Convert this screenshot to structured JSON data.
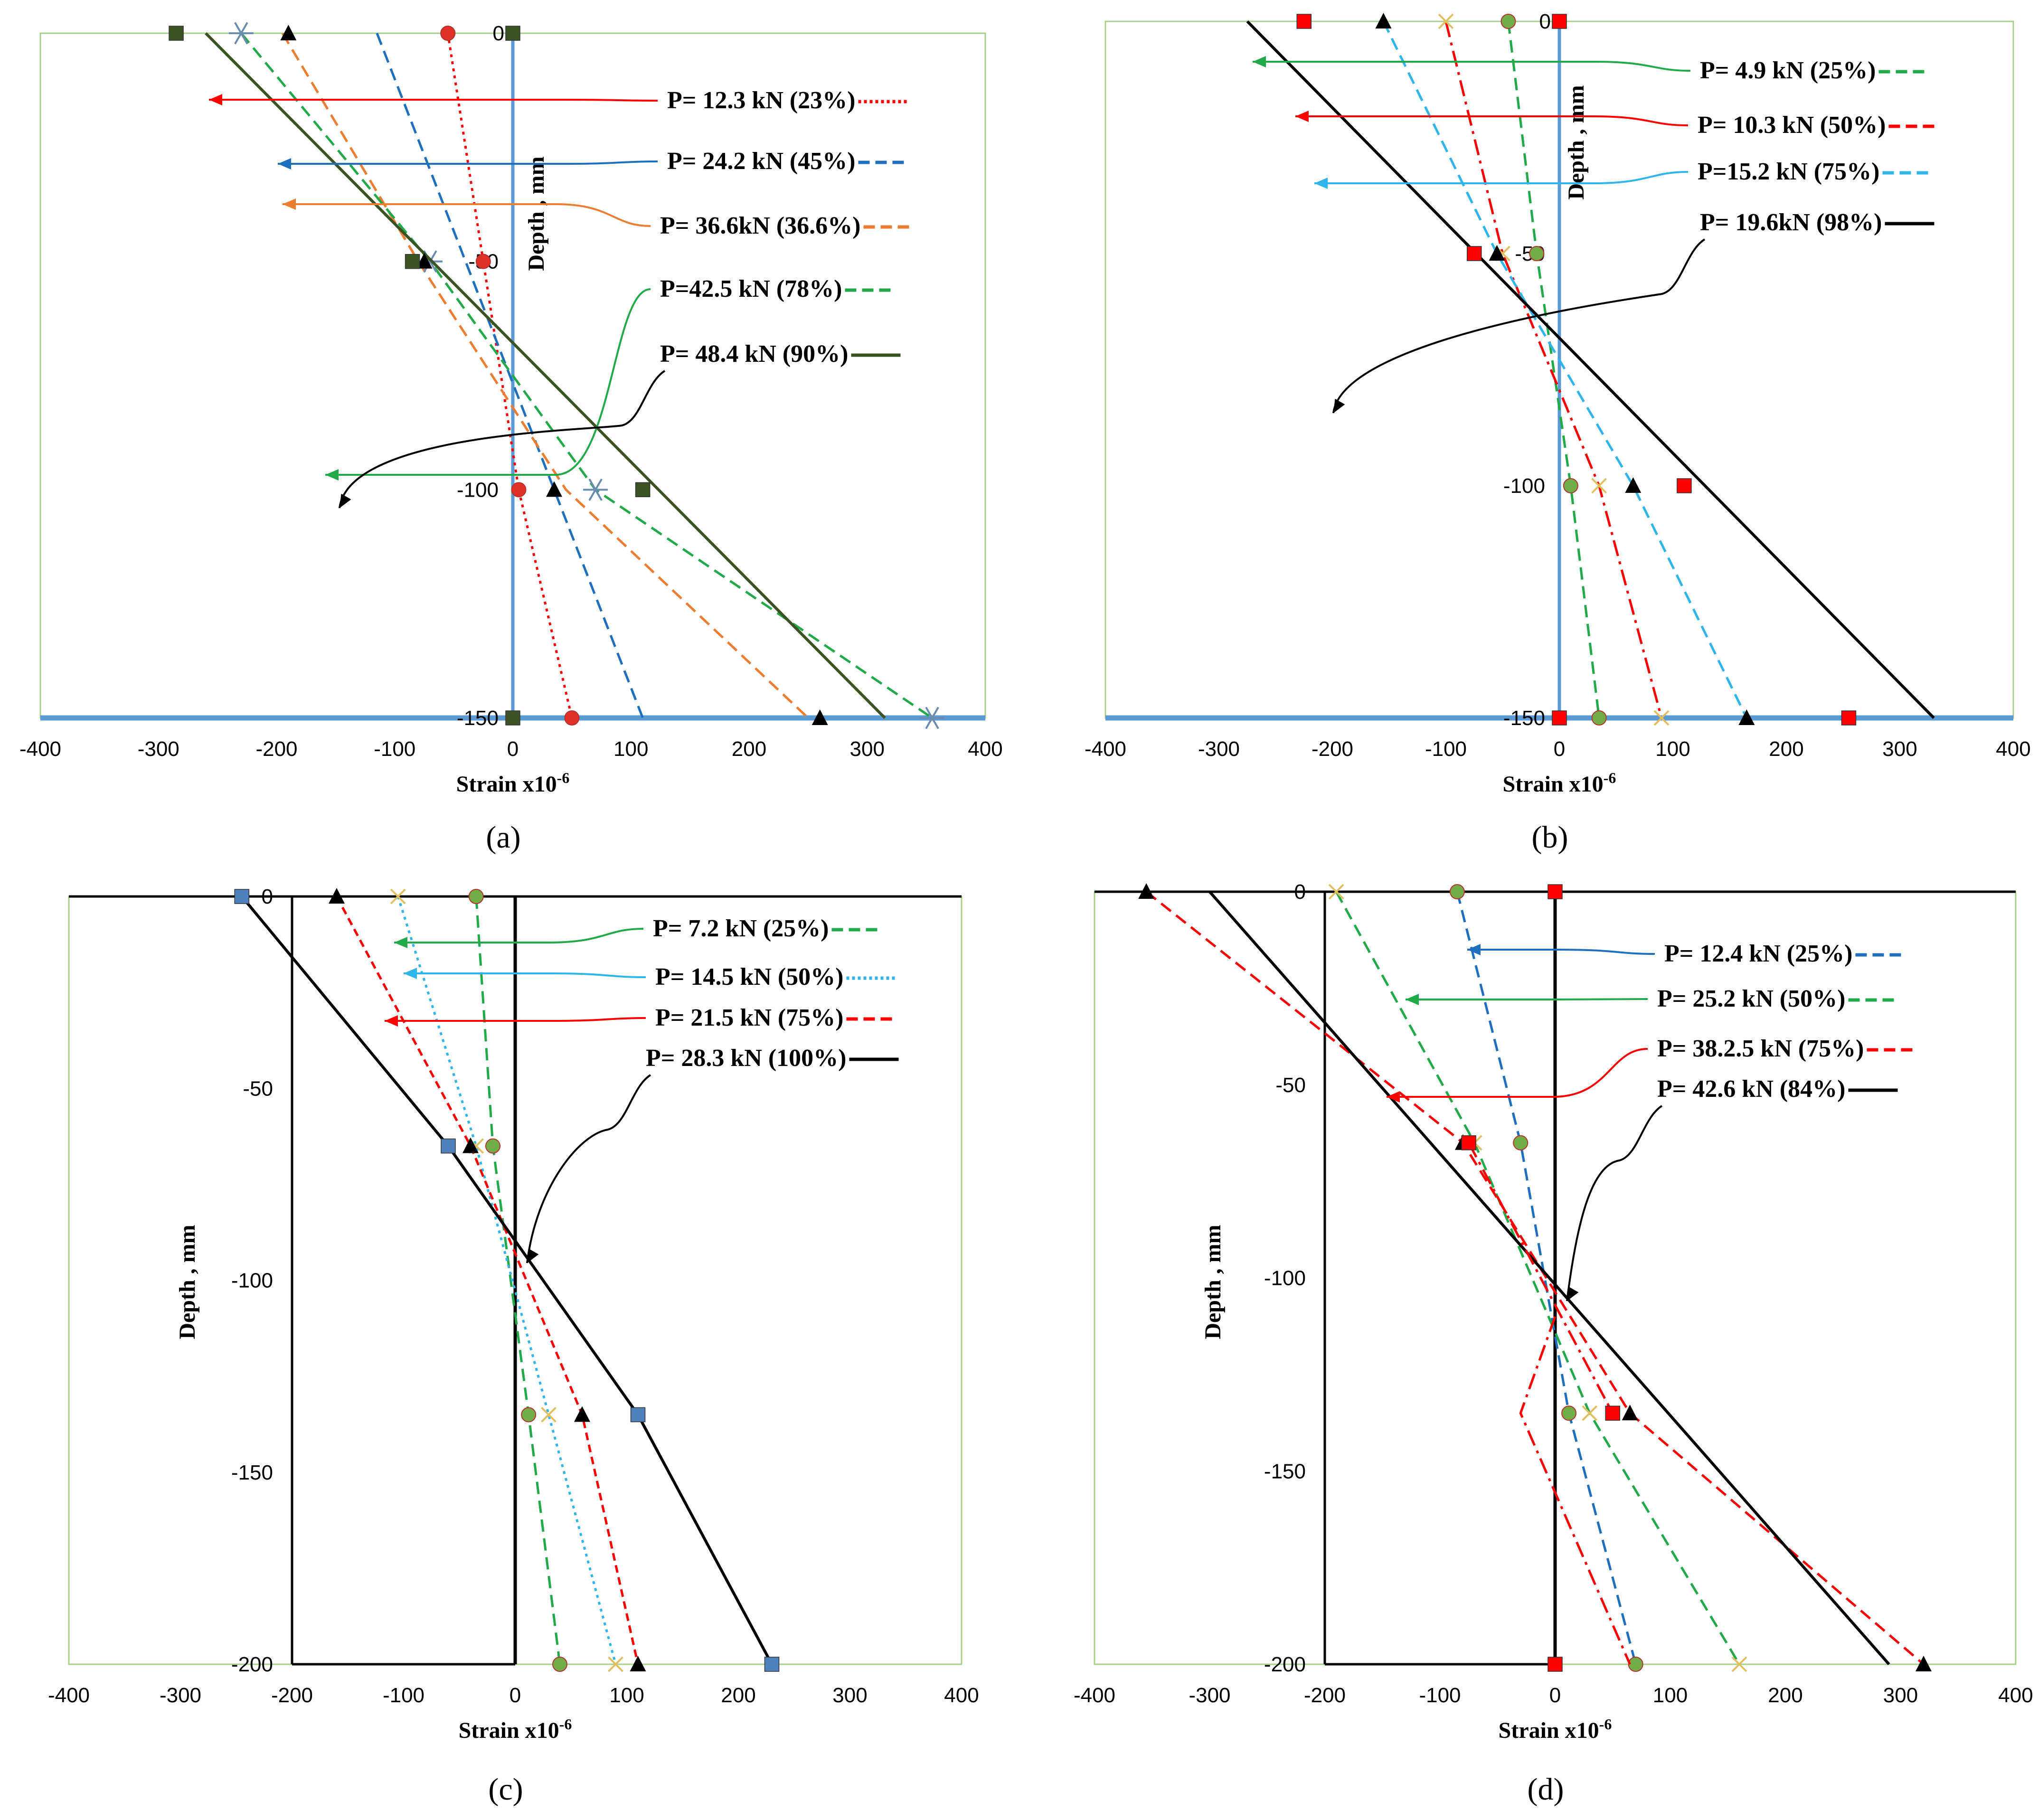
{
  "chart_data": [
    {
      "id": "a",
      "type": "line",
      "caption": "(a)",
      "xlabel": "Strain x10",
      "xlabel_sup": "-6",
      "ylabel": "Depth , mm",
      "xlim": [
        -400,
        400
      ],
      "ylim": [
        -150,
        0
      ],
      "xticks": [
        -400,
        -300,
        -200,
        -100,
        0,
        100,
        200,
        300,
        400
      ],
      "yticks": [
        0,
        -50,
        -100,
        -150
      ],
      "frame_color": "#a9d18e",
      "series": [
        {
          "name": "P= 12.3 kN (23%)",
          "color": "#ff0000",
          "dash": "dot",
          "marker": "circle",
          "marker_color": "#e0302a",
          "points": [
            [
              -55,
              0
            ],
            [
              -25,
              -50
            ],
            [
              5,
              -100
            ],
            [
              50,
              -150
            ]
          ]
        },
        {
          "name": "P= 24.2 kN (45%)",
          "color": "#1f6fbf",
          "dash": "dash",
          "marker": "none",
          "marker_color": "#1f6fbf",
          "points": [
            [
              -115,
              0
            ],
            [
              -40,
              -50
            ],
            [
              35,
              -100
            ],
            [
              110,
              -150
            ]
          ]
        },
        {
          "name": "P=  36.6kN (36.6%)",
          "color": "#ed7d31",
          "dash": "dash",
          "marker": "none",
          "marker_color": "#ed7d31",
          "points": [
            [
              -195,
              0
            ],
            [
              -80,
              -50
            ],
            [
              45,
              -100
            ],
            [
              250,
              -150
            ]
          ]
        },
        {
          "name": "P=42.5 kN (78%)",
          "color": "#22aa4a",
          "dash": "dash",
          "marker": "star",
          "marker_color": "#6a8cb0",
          "points": [
            [
              -230,
              0
            ],
            [
              -70,
              -50
            ],
            [
              70,
              -100
            ],
            [
              355,
              -150
            ]
          ]
        },
        {
          "name": "P= 48.4 kN (90%)",
          "color": "#3b5323",
          "dash": "solid",
          "marker": "none",
          "marker_color": "#3b5323",
          "points": [
            [
              -260,
              0
            ],
            [
              315,
              -150
            ]
          ]
        },
        {
          "name": "",
          "color": "#000000",
          "dash": "none",
          "marker": "triangle",
          "marker_color": "#000000",
          "points": [
            [
              -190,
              0
            ],
            [
              -75,
              -50
            ],
            [
              35,
              -100
            ],
            [
              260,
              -150
            ]
          ]
        },
        {
          "name": "",
          "color": "#3b5323",
          "dash": "none",
          "marker": "square",
          "marker_color": "#3b5323",
          "points": [
            [
              -285,
              0
            ],
            [
              -85,
              -50
            ],
            [
              110,
              -100
            ],
            [
              0,
              -150
            ],
            [
              0,
              0
            ]
          ]
        }
      ]
    },
    {
      "id": "b",
      "type": "line",
      "caption": "(b)",
      "xlabel": "Strain x10",
      "xlabel_sup": "-6",
      "ylabel": "Depth , mm",
      "xlim": [
        -400,
        400
      ],
      "ylim": [
        -150,
        0
      ],
      "xticks": [
        -400,
        -300,
        -200,
        -100,
        0,
        100,
        200,
        300,
        400
      ],
      "yticks": [
        0,
        -50,
        -100,
        -150
      ],
      "frame_color": "#a9d18e",
      "series": [
        {
          "name": "P= 4.9 kN (25%)",
          "color": "#22aa4a",
          "dash": "dash",
          "marker": "circle",
          "marker_color": "#70ad47",
          "points": [
            [
              -45,
              0
            ],
            [
              -20,
              -50
            ],
            [
              10,
              -100
            ],
            [
              35,
              -150
            ]
          ]
        },
        {
          "name": "P= 10.3 kN (50%)",
          "color": "#ff0000",
          "dash": "dashdot",
          "marker": "xmark",
          "marker_color": "#e0c060",
          "points": [
            [
              -100,
              0
            ],
            [
              -50,
              -50
            ],
            [
              35,
              -100
            ],
            [
              90,
              -150
            ]
          ]
        },
        {
          "name": "P=15.2 kN (75%)",
          "color": "#2fb5ea",
          "dash": "dash",
          "marker": "triangle",
          "marker_color": "#000000",
          "points": [
            [
              -155,
              0
            ],
            [
              -55,
              -50
            ],
            [
              65,
              -100
            ],
            [
              165,
              -150
            ]
          ]
        },
        {
          "name": "P= 19.6kN (98%)",
          "color": "#000000",
          "dash": "solid",
          "marker": "none",
          "marker_color": "#000000",
          "points": [
            [
              -275,
              0
            ],
            [
              330,
              -150
            ]
          ]
        },
        {
          "name": "",
          "color": "#ff0000",
          "dash": "none",
          "marker": "square",
          "marker_color": "#ff0000",
          "points": [
            [
              -225,
              0
            ],
            [
              -75,
              -50
            ],
            [
              110,
              -100
            ],
            [
              255,
              -150
            ],
            [
              0,
              0
            ],
            [
              0,
              -150
            ]
          ]
        }
      ]
    },
    {
      "id": "c",
      "type": "line",
      "caption": "(c)",
      "xlabel": "Strain x10",
      "xlabel_sup": "-6",
      "ylabel": "Depth , mm",
      "xlim": [
        -400,
        400
      ],
      "ylim": [
        -200,
        0
      ],
      "xticks": [
        -400,
        -300,
        -200,
        -100,
        0,
        100,
        200,
        300,
        400
      ],
      "yticks": [
        0,
        -50,
        -100,
        -150,
        -200
      ],
      "frame_color": "#a9d18e",
      "series": [
        {
          "name": "P= 7.2 kN (25%)",
          "color": "#22aa4a",
          "dash": "dash",
          "marker": "circle",
          "marker_color": "#70ad47",
          "points": [
            [
              -35,
              0
            ],
            [
              -20,
              -65
            ],
            [
              12,
              -135
            ],
            [
              40,
              -200
            ]
          ]
        },
        {
          "name": "P= 14.5 kN (50%)",
          "color": "#2fb5ea",
          "dash": "dot",
          "marker": "xmark",
          "marker_color": "#e0c060",
          "points": [
            [
              -105,
              0
            ],
            [
              -35,
              -65
            ],
            [
              30,
              -135
            ],
            [
              90,
              -200
            ]
          ]
        },
        {
          "name": "P= 21.5 kN (75%)",
          "color": "#ff0000",
          "dash": "fine",
          "marker": "triangle",
          "marker_color": "#000000",
          "points": [
            [
              -160,
              0
            ],
            [
              -40,
              -65
            ],
            [
              60,
              -135
            ],
            [
              110,
              -200
            ]
          ]
        },
        {
          "name": "P= 28.3 kN (100%)",
          "color": "#000000",
          "dash": "solid",
          "marker": "square",
          "marker_color": "#4f81bd",
          "points": [
            [
              -245,
              0
            ],
            [
              -60,
              -65
            ],
            [
              110,
              -135
            ],
            [
              230,
              -200
            ]
          ]
        }
      ]
    },
    {
      "id": "d",
      "type": "line",
      "caption": "(d)",
      "xlabel": "Strain x10",
      "xlabel_sup": "-6",
      "ylabel": "Depth , mm",
      "xlim": [
        -400,
        400
      ],
      "ylim": [
        -200,
        0
      ],
      "xticks": [
        -400,
        -300,
        -200,
        -100,
        0,
        100,
        200,
        300,
        400
      ],
      "yticks": [
        0,
        -50,
        -100,
        -150,
        -200
      ],
      "frame_color": "#a9d18e",
      "series": [
        {
          "name": "P= 12.4 kN (25%)",
          "color": "#1f6fbf",
          "dash": "dash",
          "marker": "circle",
          "marker_color": "#70ad47",
          "points": [
            [
              -85,
              0
            ],
            [
              -30,
              -65
            ],
            [
              12,
              -135
            ],
            [
              70,
              -200
            ]
          ]
        },
        {
          "name": "P= 25.2 kN (50%)",
          "color": "#22aa4a",
          "dash": "dash",
          "marker": "xmark",
          "marker_color": "#e0c060",
          "points": [
            [
              -190,
              0
            ],
            [
              -70,
              -65
            ],
            [
              30,
              -135
            ],
            [
              160,
              -200
            ]
          ]
        },
        {
          "name": "P= 38.2.5 kN (75%)",
          "color": "#ff0000",
          "dash": "dash",
          "marker": "triangle",
          "marker_color": "#000000",
          "points": [
            [
              -355,
              0
            ],
            [
              -80,
              -65
            ],
            [
              65,
              -135
            ],
            [
              320,
              -200
            ]
          ]
        },
        {
          "name": "P= 42.6 kN (84%)",
          "color": "#000000",
          "dash": "solid",
          "marker": "none",
          "marker_color": "#000000",
          "points": [
            [
              -300,
              0
            ],
            [
              290,
              -200
            ]
          ]
        },
        {
          "name": "",
          "color": "#ff0000",
          "dash": "dashdot",
          "marker": "square",
          "marker_color": "#ff0000",
          "points": [
            [
              0,
              0
            ],
            [
              -75,
              -65
            ],
            [
              50,
              -135
            ],
            [
              0,
              -200
            ]
          ]
        },
        {
          "name": "",
          "color": "#ff0000",
          "dash": "dashdot",
          "marker": "none",
          "marker_color": "#ff0000",
          "points": [
            [
              0,
              -110
            ],
            [
              -30,
              -135
            ],
            [
              65,
              -200
            ]
          ]
        }
      ]
    }
  ]
}
